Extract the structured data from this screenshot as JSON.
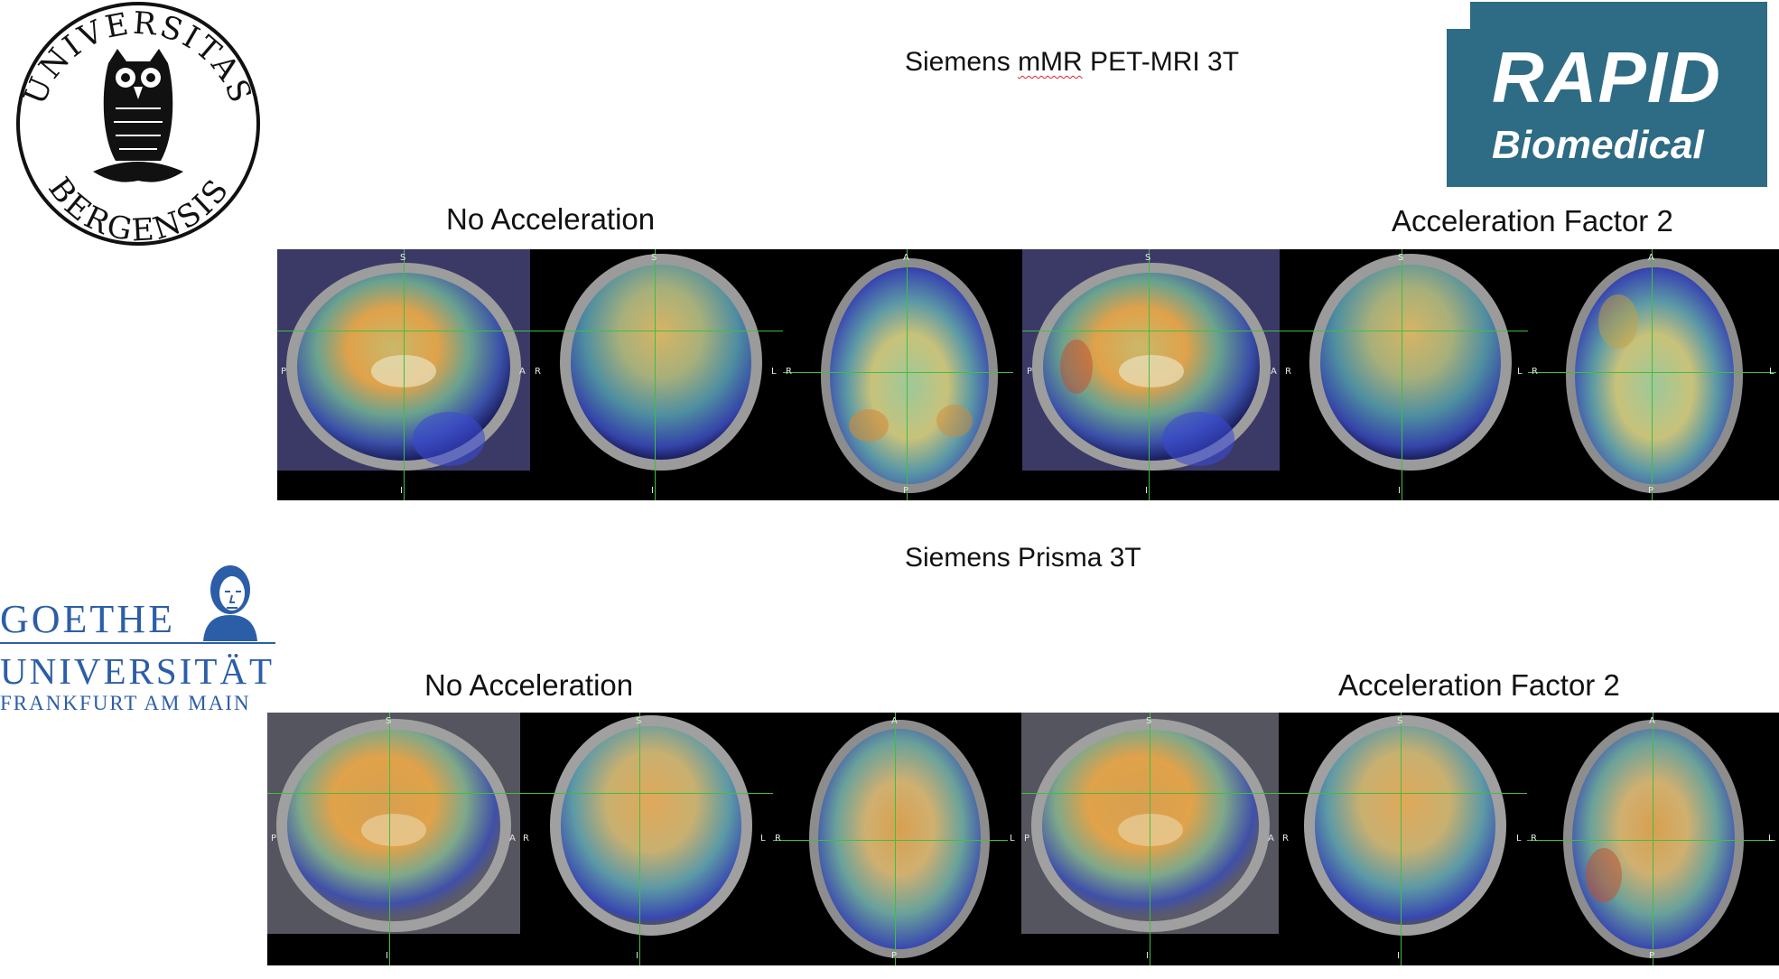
{
  "logos": {
    "uib": {
      "alt": "Universitas Bergensis seal",
      "text": "UNIVERSITAS BERGENSIS"
    },
    "rapid": {
      "line1": "RAPID",
      "line2": "Biomedical",
      "color": "#2e6b84"
    },
    "goethe": {
      "line1": "GOETHE",
      "line2": "UNIVERSITÄT",
      "line3": "FRANKFURT AM MAIN",
      "color": "#2c5ea8"
    }
  },
  "sections": [
    {
      "title_prefix": "Siemens ",
      "title_underlined": "mMR",
      "title_suffix": " PET-MRI 3T",
      "left_label": "No Acceleration",
      "right_label": "Acceleration Factor 2"
    },
    {
      "title": "Siemens Prisma 3T",
      "left_label": "No Acceleration",
      "right_label": "Acceleration Factor 2"
    }
  ],
  "orientation": {
    "s": "S",
    "i": "I",
    "a": "A",
    "p": "P",
    "l": "L",
    "r": "R"
  },
  "colors": {
    "crosshair": "#3fbf3f",
    "background": "#000000"
  }
}
